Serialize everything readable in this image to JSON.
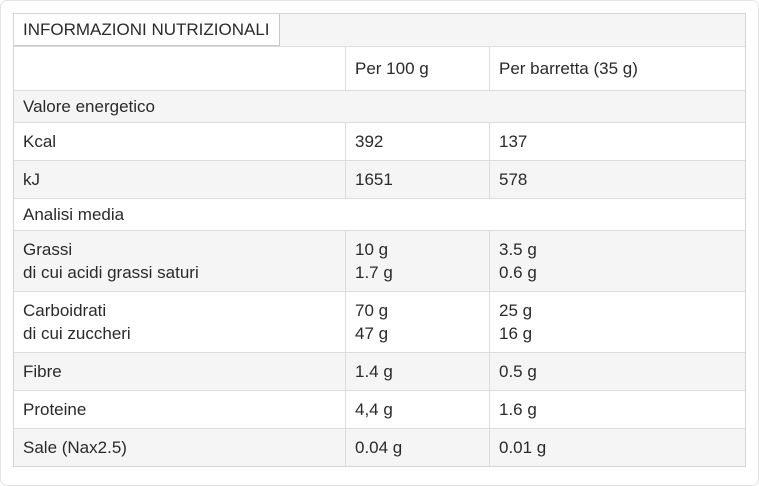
{
  "colors": {
    "background": "#ffffff",
    "row_shade": "#f5f5f5",
    "row_border": "#dcdcdc",
    "outer_border": "#d4d4d4",
    "title_box_border": "#c8c8c8",
    "text": "#2a2a2a"
  },
  "table": {
    "title": "INFORMAZIONI NUTRIZIONALI",
    "header": {
      "col_label": "",
      "col_per_100g": "Per 100 g",
      "col_per_barretta": "Per barretta (35 g)"
    },
    "rows": [
      {
        "kind": "section",
        "label": "Valore energetico"
      },
      {
        "kind": "data",
        "label": "Kcal",
        "per_100g": "392",
        "per_barretta": "137"
      },
      {
        "kind": "data",
        "label": "kJ",
        "per_100g": "1651",
        "per_barretta": "578"
      },
      {
        "kind": "section",
        "label": "Analisi media"
      },
      {
        "kind": "data",
        "label": "Grassi",
        "sublabel": "di cui acidi grassi saturi",
        "per_100g": "10 g",
        "per_100g_sub": "1.7 g",
        "per_barretta": "3.5 g",
        "per_barretta_sub": "0.6 g"
      },
      {
        "kind": "data",
        "label": "Carboidrati",
        "sublabel": "di cui zuccheri",
        "per_100g": "70 g",
        "per_100g_sub": "47 g",
        "per_barretta": "25 g",
        "per_barretta_sub": "16 g"
      },
      {
        "kind": "data",
        "label": "Fibre",
        "per_100g": "1.4 g",
        "per_barretta": "0.5 g"
      },
      {
        "kind": "data",
        "label": "Proteine",
        "per_100g": "4,4 g",
        "per_barretta": "1.6 g"
      },
      {
        "kind": "data",
        "label": "Sale (Nax2.5)",
        "per_100g": "0.04 g",
        "per_barretta": "0.01 g"
      }
    ]
  }
}
